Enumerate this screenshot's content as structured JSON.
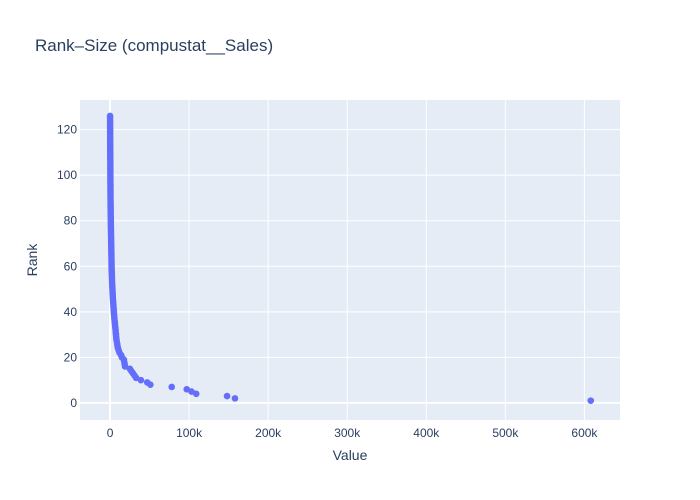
{
  "chart_data": {
    "type": "scatter",
    "title": "Rank–Size (compustat__Sales)",
    "xlabel": "Value",
    "ylabel": "Rank",
    "xlim": [
      -38000,
      645000
    ],
    "ylim": [
      -7.5,
      133
    ],
    "x_ticks": [
      0,
      100000,
      200000,
      300000,
      400000,
      500000,
      600000
    ],
    "x_tick_labels": [
      "0",
      "100k",
      "200k",
      "300k",
      "400k",
      "500k",
      "600k"
    ],
    "y_ticks": [
      0,
      20,
      40,
      60,
      80,
      100,
      120
    ],
    "y_tick_labels": [
      "0",
      "20",
      "40",
      "60",
      "80",
      "100",
      "120"
    ],
    "grid": true,
    "colors": {
      "plot_bg": "#e5ecf6",
      "grid": "#ffffff",
      "marker": "#636efa",
      "text": "#2a3f5f"
    },
    "points": [
      [
        608000,
        1
      ],
      [
        158000,
        2
      ],
      [
        148000,
        3
      ],
      [
        109000,
        4
      ],
      [
        103000,
        5
      ],
      [
        97000,
        6
      ],
      [
        78000,
        7
      ],
      [
        51000,
        8
      ],
      [
        47000,
        9
      ],
      [
        39000,
        10
      ],
      [
        33000,
        11
      ],
      [
        31000,
        12
      ],
      [
        29000,
        13
      ],
      [
        27000,
        14
      ],
      [
        25000,
        15
      ],
      [
        19000,
        16
      ],
      [
        18500,
        17
      ],
      [
        18000,
        18
      ],
      [
        17500,
        19
      ],
      [
        15000,
        20
      ],
      [
        14000,
        21
      ],
      [
        12000,
        22
      ],
      [
        11000,
        23
      ],
      [
        10000,
        24
      ],
      [
        9500,
        25
      ],
      [
        9000,
        26
      ],
      [
        8500,
        27
      ],
      [
        8000,
        28
      ],
      [
        7800,
        29
      ],
      [
        7500,
        30
      ],
      [
        7200,
        31
      ],
      [
        7000,
        32
      ],
      [
        6700,
        33
      ],
      [
        6400,
        34
      ],
      [
        6100,
        35
      ],
      [
        5800,
        36
      ],
      [
        5500,
        37
      ],
      [
        5300,
        38
      ],
      [
        5000,
        39
      ],
      [
        4800,
        40
      ],
      [
        4600,
        41
      ],
      [
        4400,
        42
      ],
      [
        4200,
        43
      ],
      [
        4000,
        44
      ],
      [
        3800,
        45
      ],
      [
        3600,
        46
      ],
      [
        3450,
        47
      ],
      [
        3300,
        48
      ],
      [
        3150,
        49
      ],
      [
        3000,
        50
      ],
      [
        2850,
        51
      ],
      [
        2700,
        52
      ],
      [
        2600,
        53
      ],
      [
        2500,
        54
      ],
      [
        2400,
        55
      ],
      [
        2300,
        56
      ],
      [
        2200,
        57
      ],
      [
        2100,
        58
      ],
      [
        2000,
        59
      ],
      [
        1950,
        60
      ],
      [
        1900,
        61
      ],
      [
        1850,
        62
      ],
      [
        1800,
        63
      ],
      [
        1750,
        64
      ],
      [
        1700,
        65
      ],
      [
        1650,
        66
      ],
      [
        1600,
        67
      ],
      [
        1550,
        68
      ],
      [
        1500,
        69
      ],
      [
        1450,
        70
      ],
      [
        1400,
        71
      ],
      [
        1350,
        72
      ],
      [
        1300,
        73
      ],
      [
        1250,
        74
      ],
      [
        1200,
        75
      ],
      [
        1150,
        76
      ],
      [
        1100,
        77
      ],
      [
        1050,
        78
      ],
      [
        1000,
        79
      ],
      [
        960,
        80
      ],
      [
        920,
        81
      ],
      [
        880,
        82
      ],
      [
        840,
        83
      ],
      [
        800,
        84
      ],
      [
        770,
        85
      ],
      [
        740,
        86
      ],
      [
        710,
        87
      ],
      [
        680,
        88
      ],
      [
        650,
        89
      ],
      [
        620,
        90
      ],
      [
        600,
        91
      ],
      [
        580,
        92
      ],
      [
        560,
        93
      ],
      [
        540,
        94
      ],
      [
        520,
        95
      ],
      [
        500,
        96
      ],
      [
        480,
        97
      ],
      [
        460,
        98
      ],
      [
        440,
        99
      ],
      [
        420,
        100
      ],
      [
        400,
        101
      ],
      [
        385,
        102
      ],
      [
        370,
        103
      ],
      [
        355,
        104
      ],
      [
        340,
        105
      ],
      [
        325,
        106
      ],
      [
        310,
        107
      ],
      [
        295,
        108
      ],
      [
        280,
        109
      ],
      [
        265,
        110
      ],
      [
        250,
        111
      ],
      [
        235,
        112
      ],
      [
        220,
        113
      ],
      [
        205,
        114
      ],
      [
        190,
        115
      ],
      [
        175,
        116
      ],
      [
        160,
        117
      ],
      [
        145,
        118
      ],
      [
        130,
        119
      ],
      [
        115,
        120
      ],
      [
        100,
        121
      ],
      [
        85,
        122
      ],
      [
        70,
        123
      ],
      [
        55,
        124
      ],
      [
        40,
        125
      ],
      [
        25,
        126
      ]
    ]
  }
}
